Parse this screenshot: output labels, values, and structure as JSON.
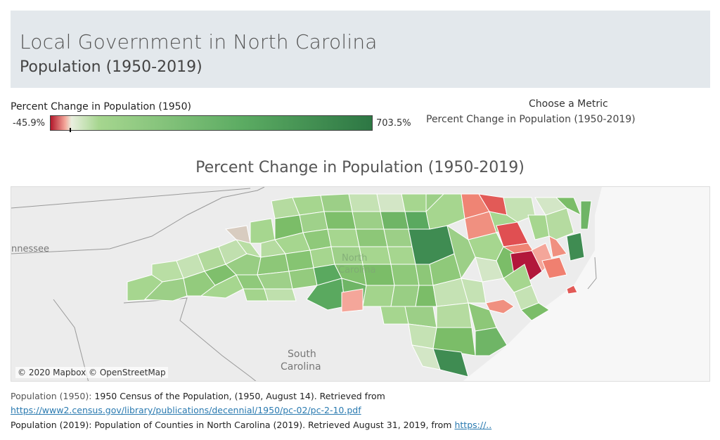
{
  "header": {
    "title": "Local Government in North Carolina",
    "subtitle": "Population (1950-2019)"
  },
  "legend": {
    "title": "Percent Change in Population (1950)",
    "min": "-45.9%",
    "max": "703.5%",
    "min_value": -45.9,
    "max_value": 703.5,
    "colors": {
      "negative_strong": "#b2182b",
      "negative_light": "#f4a69a",
      "neutral": "#e9efdf",
      "positive_light": "#a6d68f",
      "positive_strong": "#2d7744"
    }
  },
  "metric_selector": {
    "label": "Choose a Metric",
    "selected": "Percent Change in Population (1950-2019)"
  },
  "map": {
    "title": "Percent Change in Population (1950-2019)",
    "labels": {
      "tennessee": "nnessee",
      "north_carolina_1": "North",
      "north_carolina_2": "Carolina",
      "south_carolina_1": "South",
      "south_carolina_2": "Carolina"
    },
    "attribution": "© 2020 Mapbox © OpenStreetMap"
  },
  "footer": {
    "source1_label": "Population (1950):",
    "source1_text": " 1950 Census of the Population,  (1950, August 14). Retrieved from",
    "source1_link": "https://www2.census.gov/library/publications/decennial/1950/pc-02/pc-2-10.pdf",
    "source2_text": "Population (2019): Population of Counties in North Carolina (2019). Retrieved August 31, 2019, from ",
    "source2_link": "https://.."
  }
}
